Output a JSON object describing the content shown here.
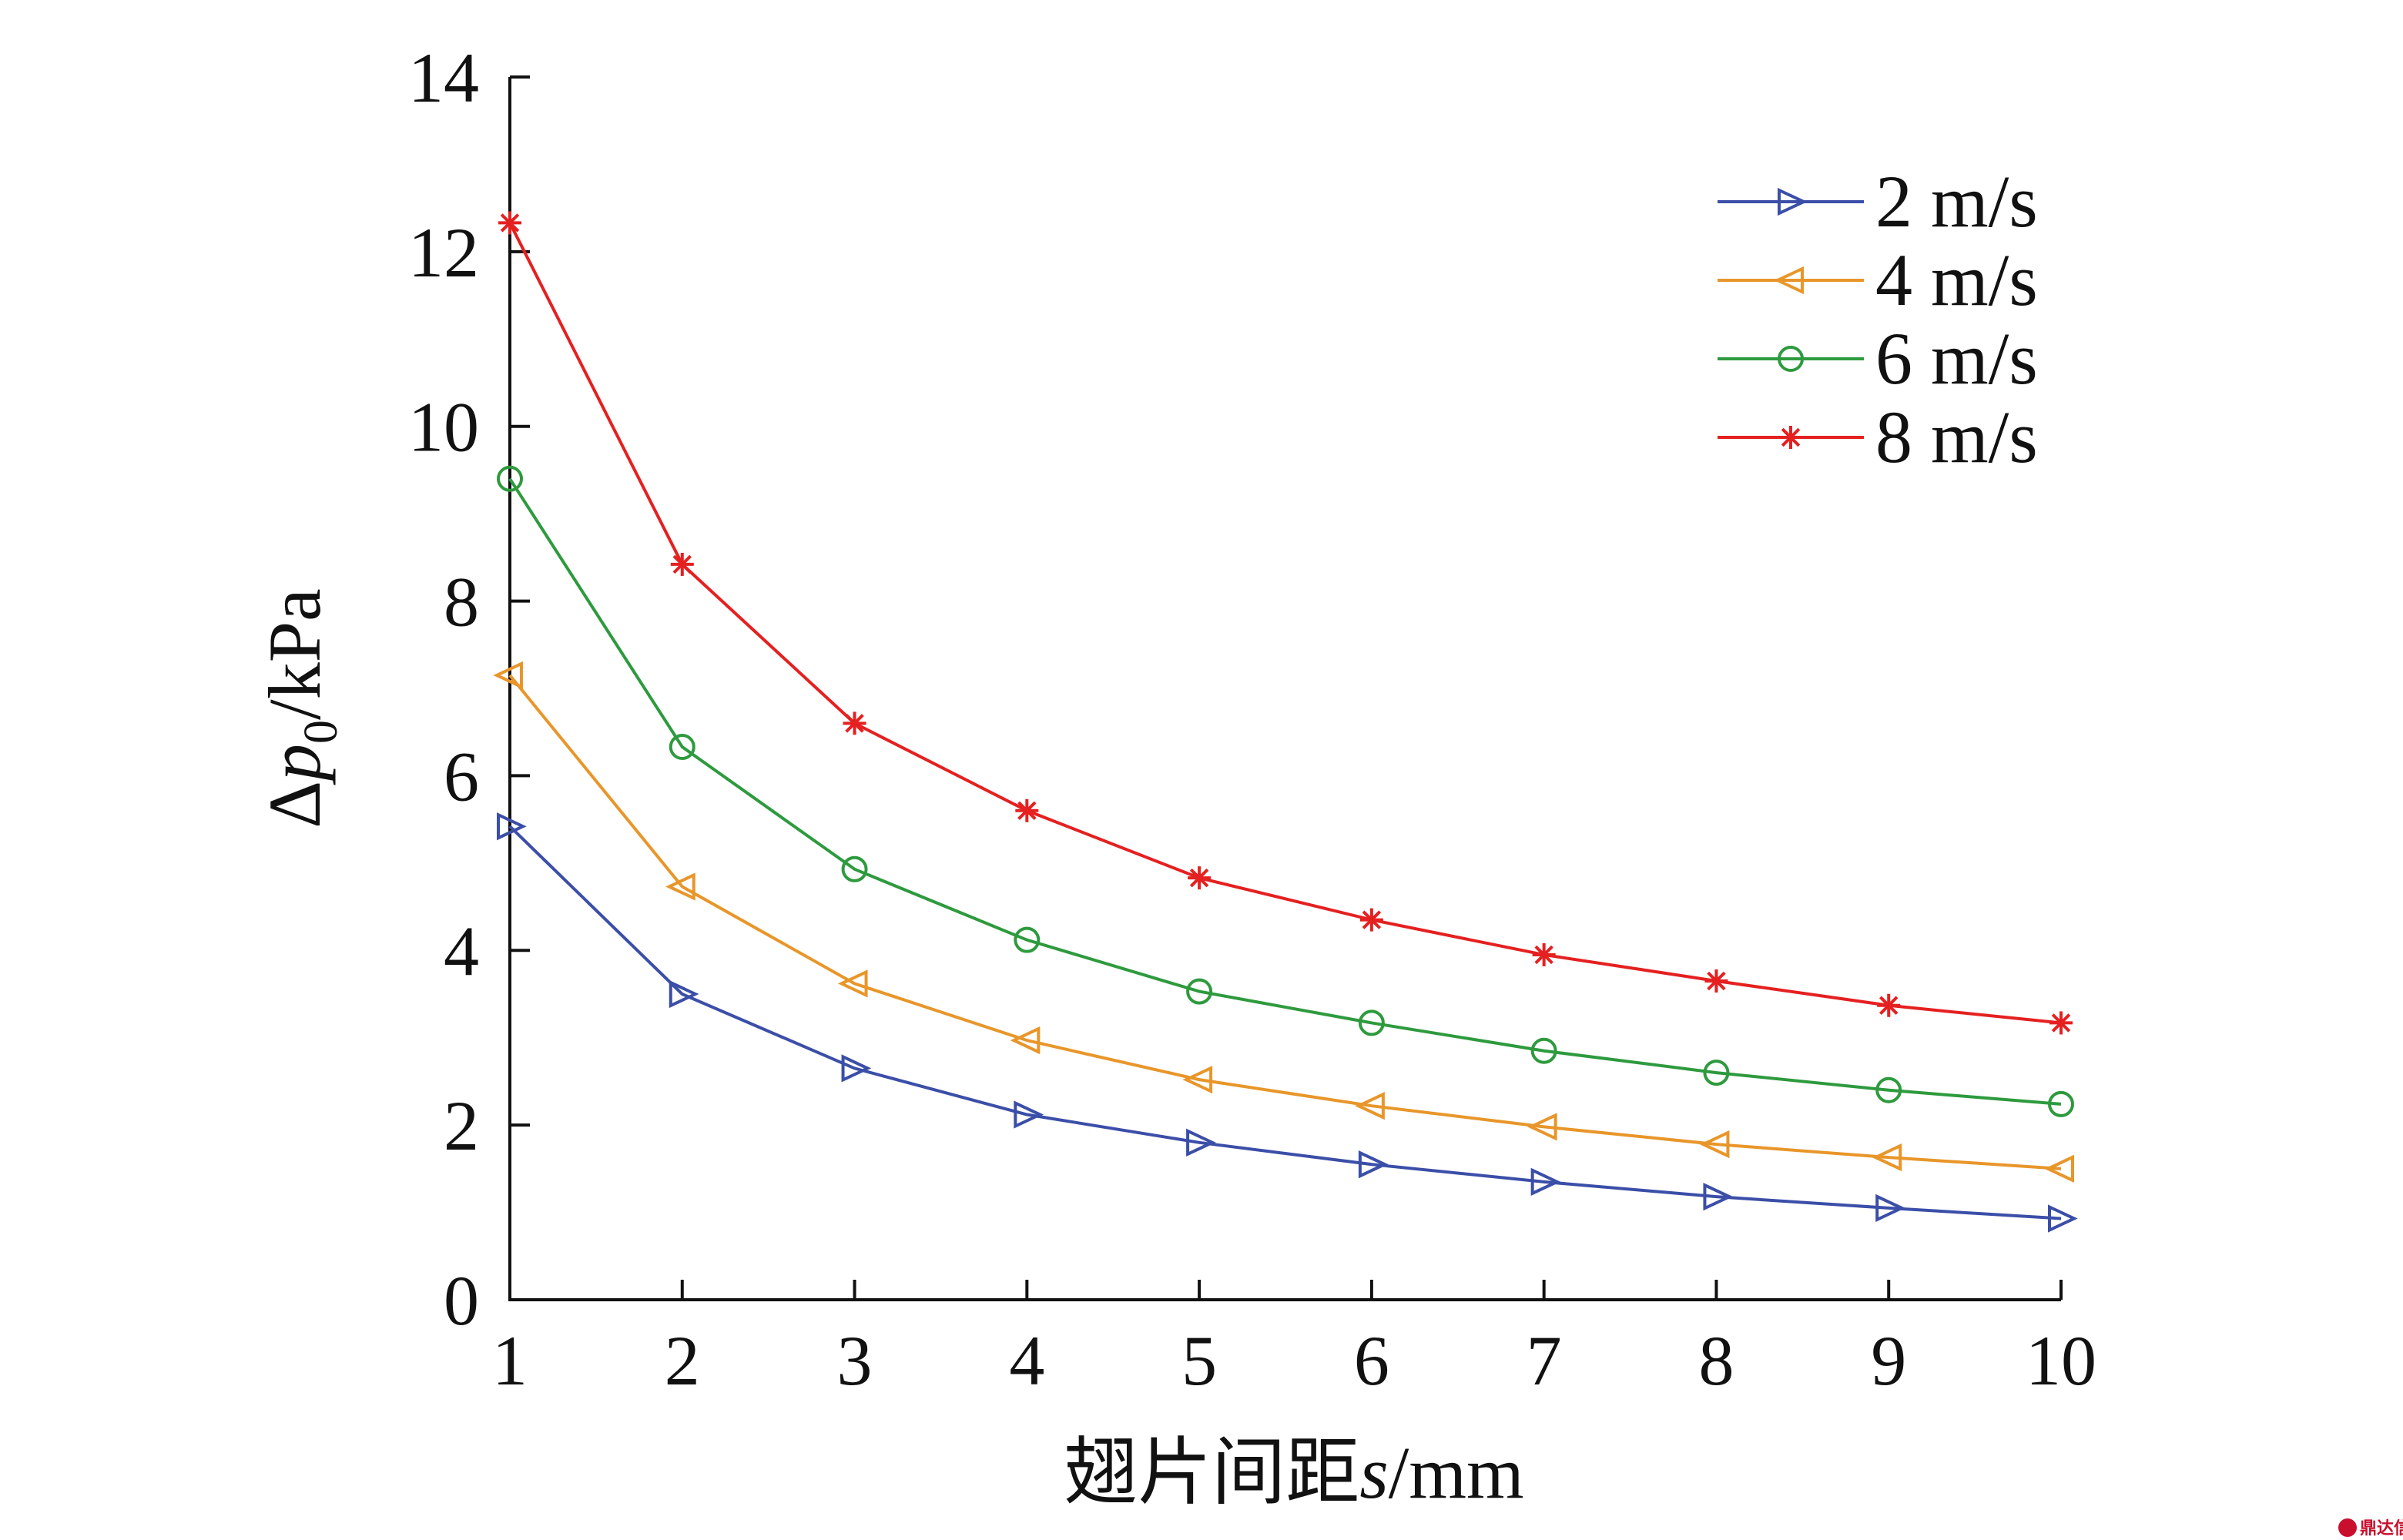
{
  "chart_data": {
    "type": "line",
    "xlabel_prefix": "翅片间距",
    "xlabel_var": "s",
    "xlabel_unit": "/mm",
    "ylabel_prefix": "Δ",
    "ylabel_var": "p",
    "ylabel_sub": "0",
    "ylabel_unit": "/kPa",
    "xlim": [
      1,
      10
    ],
    "ylim": [
      0,
      14
    ],
    "x_ticks": [
      1,
      2,
      3,
      4,
      5,
      6,
      7,
      8,
      9,
      10
    ],
    "y_ticks": [
      0,
      2,
      4,
      6,
      8,
      10,
      12,
      14
    ],
    "grid": false,
    "legend_position": "top-right",
    "x": [
      1,
      2,
      3,
      4,
      5,
      6,
      7,
      8,
      9,
      10
    ],
    "series": [
      {
        "name": "2 m/s",
        "color": "#3b4ea8",
        "marker": "triangle-right",
        "values": [
          5.42,
          3.5,
          2.65,
          2.12,
          1.8,
          1.55,
          1.35,
          1.18,
          1.05,
          0.93
        ]
      },
      {
        "name": "4 m/s",
        "color": "#e8962a",
        "marker": "triangle-left",
        "values": [
          7.15,
          4.73,
          3.62,
          2.97,
          2.52,
          2.22,
          1.98,
          1.78,
          1.63,
          1.5
        ]
      },
      {
        "name": "6 m/s",
        "color": "#2e9a3e",
        "marker": "circle",
        "values": [
          9.4,
          6.33,
          4.93,
          4.12,
          3.53,
          3.17,
          2.85,
          2.6,
          2.4,
          2.24
        ]
      },
      {
        "name": "8 m/s",
        "color": "#e52020",
        "marker": "asterisk",
        "values": [
          12.33,
          8.42,
          6.6,
          5.6,
          4.83,
          4.35,
          3.95,
          3.65,
          3.37,
          3.17
        ]
      }
    ]
  },
  "watermark": {
    "text": "鼎达信"
  }
}
